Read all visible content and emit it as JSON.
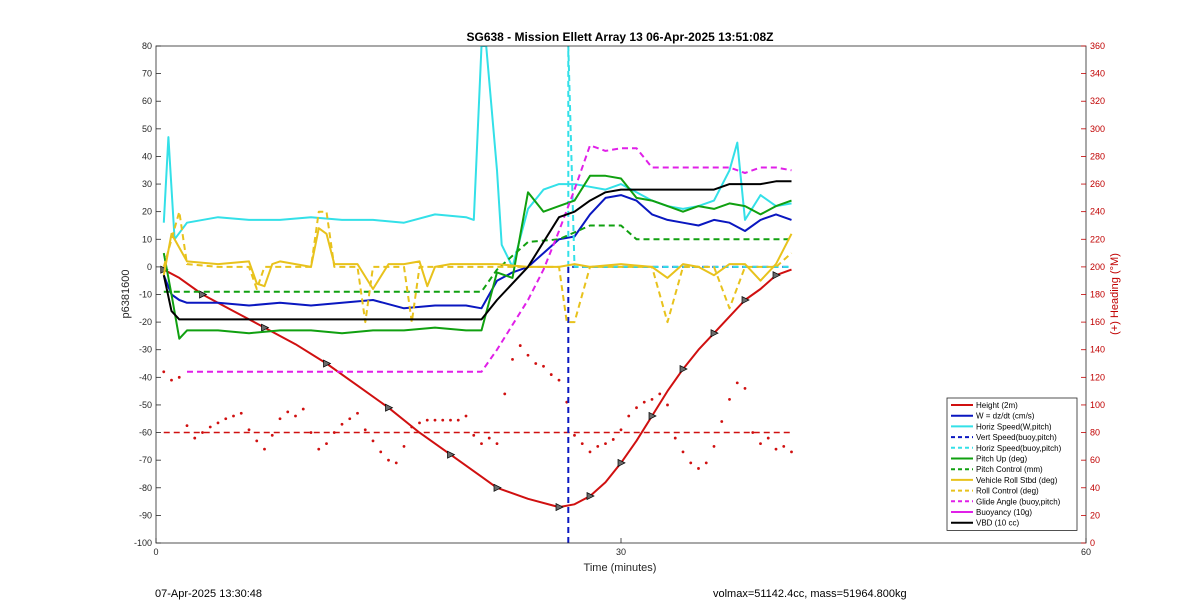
{
  "chart_data": {
    "type": "line",
    "title": "SG638 - Mission Ellett Array 13 06-Apr-2025 13:51:08Z",
    "xlabel": "Time (minutes)",
    "ylabel_left": "p6381600",
    "ylabel_right": "(+) Heading (°M)",
    "xlim": [
      0,
      60
    ],
    "ylim_left": [
      -100,
      80
    ],
    "ylim_right": [
      0,
      360
    ],
    "x_ticks": [
      "0",
      "30",
      "60"
    ],
    "y_ticks_left": [
      "80",
      "70",
      "60",
      "50",
      "40",
      "30",
      "20",
      "10",
      "0",
      "-10",
      "-20",
      "-30",
      "-40",
      "-50",
      "-60",
      "-70",
      "-80",
      "-90",
      "-100"
    ],
    "y_ticks_right": [
      "360",
      "340",
      "320",
      "300",
      "280",
      "260",
      "240",
      "220",
      "200",
      "180",
      "160",
      "140",
      "120",
      "100",
      "80",
      "60",
      "40",
      "20",
      "0"
    ],
    "grid": false,
    "legend_position": "bottom-right",
    "colors": {
      "height": "#d01010",
      "w": "#0a17c0",
      "horiz": "#33e0e8",
      "pitch": "#10a010",
      "roll": "#e8c21c",
      "glide": "#e020e8",
      "vbd": "#000000",
      "heading": "#d01010"
    },
    "series": [
      {
        "name": "Height (2m)",
        "style": "solid",
        "color": "#d01010",
        "markers": "triangle",
        "x": [
          0.5,
          1.5,
          3,
          5,
          7,
          9,
          11,
          13,
          15,
          17,
          19,
          21,
          22,
          24,
          26,
          27,
          28,
          29,
          30,
          31,
          32,
          33,
          34,
          35,
          36,
          37,
          38,
          39,
          40,
          41
        ],
        "y": [
          -1,
          -4,
          -10,
          -16,
          -22,
          -28,
          -35,
          -43,
          -51,
          -60,
          -68,
          -76,
          -80,
          -84,
          -87,
          -86,
          -83,
          -78,
          -71,
          -63,
          -54,
          -45,
          -37,
          -30,
          -24,
          -18,
          -12,
          -8,
          -3,
          -1
        ]
      },
      {
        "name": "W = dz/dt (cm/s)",
        "style": "solid",
        "color": "#0a17c0",
        "x": [
          0.5,
          1,
          1.5,
          2,
          4,
          6,
          8,
          10,
          12,
          14,
          16,
          18,
          20,
          21,
          22,
          23,
          24,
          25,
          26,
          27,
          28,
          29,
          30,
          31,
          32,
          33,
          34,
          35,
          36,
          37,
          38,
          39,
          40,
          41
        ],
        "y": [
          -3,
          -10,
          -12,
          -13,
          -13,
          -14,
          -13,
          -14,
          -13,
          -12,
          -15,
          -14,
          -14,
          -15,
          -5,
          -2,
          0,
          5,
          10,
          11,
          19,
          25,
          26,
          24,
          19,
          17,
          16,
          15,
          17,
          16,
          13,
          17,
          19,
          17
        ]
      },
      {
        "name": "Horiz Speed(W,pitch)",
        "style": "solid",
        "color": "#33e0e8",
        "x": [
          0.5,
          0.8,
          1.2,
          2,
          4,
          6,
          8,
          10,
          12,
          14,
          16,
          18,
          20,
          20.5,
          21,
          21.3,
          22,
          22.3,
          23,
          24,
          25,
          26,
          27,
          28,
          29,
          30,
          31,
          32,
          33,
          34,
          35,
          36,
          37,
          37.5,
          38,
          39,
          40,
          41
        ],
        "y": [
          16,
          47,
          10,
          16,
          18,
          17,
          17,
          18,
          17,
          17,
          16,
          19,
          18,
          17,
          80,
          80,
          35,
          8,
          0,
          21,
          28,
          30,
          30,
          29,
          28,
          30,
          27,
          24,
          22,
          21,
          22,
          24,
          35,
          45,
          17,
          26,
          22,
          23
        ]
      },
      {
        "name": "Vert Speed(buoy,pitch)",
        "style": "dashed",
        "color": "#0a17c0",
        "x": [
          26.6,
          26.6,
          27,
          41
        ],
        "y": [
          -100,
          0,
          0,
          0
        ]
      },
      {
        "name": "Horiz Speed(buoy,pitch)",
        "style": "dashed",
        "color": "#33e0e8",
        "x": [
          26.6,
          26.6,
          27,
          41
        ],
        "y": [
          0,
          80,
          0,
          0
        ]
      },
      {
        "name": "Pitch Up (deg)",
        "style": "solid",
        "color": "#10a010",
        "x": [
          0.5,
          1,
          1.5,
          2,
          4,
          6,
          8,
          10,
          12,
          14,
          16,
          18,
          20,
          21,
          22,
          23,
          24,
          25,
          26,
          27,
          28,
          29,
          30,
          31,
          32,
          33,
          34,
          35,
          36,
          37,
          38,
          39,
          40,
          41
        ],
        "y": [
          5,
          -10,
          -26,
          -23,
          -23,
          -24,
          -23,
          -23,
          -24,
          -23,
          -23,
          -22,
          -23,
          -23,
          -2,
          -4,
          27,
          20,
          22,
          24,
          33,
          33,
          32,
          25,
          24,
          22,
          20,
          22,
          21,
          23,
          22,
          19,
          22,
          24
        ]
      },
      {
        "name": "Pitch Control (mm)",
        "style": "dashed",
        "color": "#10a010",
        "x": [
          0.5,
          2,
          4,
          6,
          8,
          10,
          12,
          14,
          16,
          18,
          20,
          21,
          22,
          24,
          26,
          28,
          30,
          31,
          32,
          35,
          38,
          41
        ],
        "y": [
          -9,
          -9,
          -9,
          -9,
          -9,
          -9,
          -9,
          -9,
          -9,
          -9,
          -9,
          -9,
          -1,
          9,
          10,
          15,
          15,
          10,
          10,
          10,
          10,
          10
        ]
      },
      {
        "name": "Vehicle Roll Stbd (deg)",
        "style": "solid",
        "color": "#e8c21c",
        "x": [
          0.5,
          1,
          2,
          4,
          6,
          6.5,
          7,
          7.5,
          8,
          9,
          10,
          10.5,
          11,
          11.5,
          12,
          13,
          14,
          15,
          16,
          17,
          17.5,
          18,
          19,
          20,
          21,
          22,
          24,
          26,
          27,
          28,
          30,
          32,
          33,
          34,
          35,
          36,
          37,
          38,
          39,
          40,
          41
        ],
        "y": [
          -3,
          12,
          2,
          1,
          2,
          -6,
          -7,
          1,
          2,
          1,
          0,
          14,
          12,
          1,
          1,
          1,
          -8,
          1,
          1,
          2,
          -7,
          0,
          1,
          1,
          1,
          1,
          0,
          0,
          1,
          0,
          1,
          0,
          -4,
          1,
          0,
          -3,
          1,
          1,
          -5,
          1,
          12
        ]
      },
      {
        "name": "Roll Control (deg)",
        "style": "dashed",
        "color": "#e8c21c",
        "x": [
          0.5,
          1.5,
          2,
          4,
          6,
          6.5,
          7,
          8,
          10,
          10.5,
          11,
          11.5,
          12,
          13,
          13.5,
          14,
          15,
          16,
          16.5,
          17,
          18,
          20,
          22,
          24,
          26,
          26.5,
          27,
          28,
          32,
          33,
          34,
          36,
          37,
          38,
          40,
          41
        ],
        "y": [
          0,
          20,
          1,
          0,
          0,
          -8,
          0,
          0,
          0,
          20,
          20,
          0,
          0,
          0,
          -20,
          0,
          0,
          0,
          -20,
          0,
          0,
          0,
          0,
          0,
          0,
          -20,
          -20,
          0,
          0,
          -20,
          0,
          0,
          -15,
          0,
          0,
          5
        ]
      },
      {
        "name": "Glide Angle (buoy,pitch)",
        "style": "dashed",
        "color": "#e020e8",
        "x": [
          2,
          4,
          6,
          8,
          10,
          12,
          14,
          16,
          18,
          20,
          21,
          22,
          24,
          25,
          26,
          27,
          28,
          29,
          30,
          31,
          32,
          33,
          34,
          35,
          36,
          37,
          38,
          39,
          40,
          41
        ],
        "y": [
          -38,
          -38,
          -38,
          -38,
          -38,
          -38,
          -38,
          -38,
          -38,
          -38,
          -38,
          -30,
          -12,
          -1,
          13,
          28,
          44,
          42,
          43,
          43,
          36,
          36,
          36,
          36,
          36,
          36,
          34,
          36,
          36,
          35
        ]
      },
      {
        "name": "Buoyancy (10g)",
        "style": "solid",
        "color": "#e020e8",
        "x": [],
        "y": []
      },
      {
        "name": "VBD (10 cc)",
        "style": "solid",
        "color": "#000000",
        "x": [
          0.5,
          1,
          1.5,
          21,
          22,
          24,
          25,
          26,
          27,
          28,
          29,
          30,
          31,
          32,
          33,
          34,
          35,
          36,
          37,
          38,
          39,
          40,
          41
        ],
        "y": [
          -3,
          -16,
          -19,
          -19,
          -12,
          0,
          9,
          18,
          20,
          24,
          27,
          28,
          28,
          28,
          28,
          28,
          28,
          28,
          30,
          30,
          30,
          31,
          31
        ]
      }
    ],
    "heading_series": {
      "name": "Heading",
      "axis": "right",
      "style": "dotted",
      "color": "#d01010",
      "x": [
        0.5,
        1,
        1.5,
        2,
        2.5,
        3,
        3.5,
        4,
        4.5,
        5,
        5.5,
        6,
        6.5,
        7,
        7.5,
        8,
        8.5,
        9,
        9.5,
        10,
        10.5,
        11,
        11.5,
        12,
        12.5,
        13,
        13.5,
        14,
        14.5,
        15,
        15.5,
        16,
        16.5,
        17,
        17.5,
        18,
        18.5,
        19,
        19.5,
        20,
        20.5,
        21,
        21.5,
        22,
        22.5,
        23,
        23.5,
        24,
        24.5,
        25,
        25.5,
        26,
        26.5,
        27,
        27.5,
        28,
        28.5,
        29,
        29.5,
        30,
        30.5,
        31,
        31.5,
        32,
        32.5,
        33,
        33.5,
        34,
        34.5,
        35,
        35.5,
        36,
        36.5,
        37,
        37.5,
        38,
        38.5,
        39,
        39.5,
        40,
        40.5,
        41
      ],
      "y": [
        124,
        118,
        120,
        85,
        76,
        80,
        84,
        87,
        90,
        92,
        94,
        82,
        74,
        68,
        78,
        90,
        95,
        92,
        97,
        80,
        68,
        72,
        80,
        86,
        90,
        94,
        82,
        74,
        66,
        60,
        58,
        70,
        84,
        87,
        89,
        89,
        89,
        89,
        89,
        92,
        78,
        72,
        76,
        72,
        108,
        133,
        143,
        136,
        130,
        128,
        122,
        118,
        102,
        78,
        72,
        66,
        70,
        72,
        75,
        82,
        92,
        98,
        102,
        104,
        108,
        100,
        76,
        66,
        58,
        54,
        58,
        70,
        88,
        104,
        116,
        112,
        80,
        72,
        76,
        68,
        70,
        66
      ],
      "reference_line": 80
    },
    "legend": [
      {
        "label": "Height (2m)",
        "color": "#d01010",
        "style": "solid"
      },
      {
        "label": "W = dz/dt (cm/s)",
        "color": "#0a17c0",
        "style": "solid"
      },
      {
        "label": "Horiz Speed(W,pitch)",
        "color": "#33e0e8",
        "style": "solid"
      },
      {
        "label": "Vert Speed(buoy,pitch)",
        "color": "#0a17c0",
        "style": "dashed"
      },
      {
        "label": "Horiz Speed(buoy,pitch)",
        "color": "#33e0e8",
        "style": "dashed"
      },
      {
        "label": "Pitch Up (deg)",
        "color": "#10a010",
        "style": "solid"
      },
      {
        "label": "Pitch Control (mm)",
        "color": "#10a010",
        "style": "dashed"
      },
      {
        "label": "Vehicle Roll Stbd (deg)",
        "color": "#e8c21c",
        "style": "solid"
      },
      {
        "label": "Roll Control (deg)",
        "color": "#e8c21c",
        "style": "dashed"
      },
      {
        "label": "Glide Angle (buoy,pitch)",
        "color": "#e020e8",
        "style": "dashed"
      },
      {
        "label": "Buoyancy (10g)",
        "color": "#e020e8",
        "style": "solid"
      },
      {
        "label": "VBD (10 cc)",
        "color": "#000000",
        "style": "solid"
      }
    ]
  },
  "footer": {
    "start_time": "07-Apr-2025 13:30:48",
    "summary": "volmax=51142.4cc, mass=51964.800kg"
  }
}
